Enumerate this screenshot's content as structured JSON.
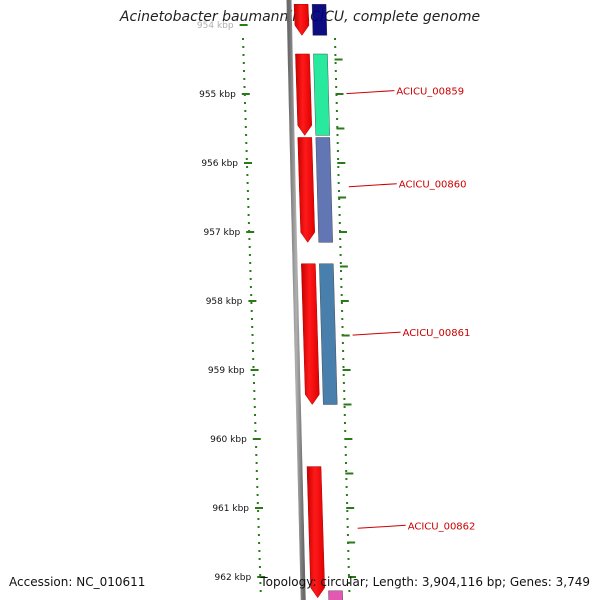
{
  "title": "Acinetobacter baumannii ACICU, complete genome",
  "footer": {
    "accession": "Accession: NC_010611",
    "summary": "Topology: circular; Length: 3,904,116 bp; Genes: 3,749"
  },
  "ticks": [
    {
      "kbp": 954,
      "label": "954 kbp"
    },
    {
      "kbp": 955,
      "label": "955 kbp"
    },
    {
      "kbp": 956,
      "label": "956 kbp"
    },
    {
      "kbp": 957,
      "label": "957 kbp"
    },
    {
      "kbp": 958,
      "label": "958 kbp"
    },
    {
      "kbp": 959,
      "label": "959 kbp"
    },
    {
      "kbp": 960,
      "label": "960 kbp"
    },
    {
      "kbp": 961,
      "label": "961 kbp"
    },
    {
      "kbp": 962,
      "label": "962 kbp"
    }
  ],
  "genes": [
    {
      "id": "g1",
      "start_kbp": 953.7,
      "end_kbp": 954.15,
      "label": ""
    },
    {
      "id": "g2",
      "start_kbp": 954.42,
      "end_kbp": 955.6,
      "label": ""
    },
    {
      "id": "g3",
      "start_kbp": 955.63,
      "end_kbp": 957.15,
      "label": ""
    },
    {
      "id": "g4",
      "start_kbp": 957.46,
      "end_kbp": 959.5,
      "label": ""
    },
    {
      "id": "g5",
      "start_kbp": 960.4,
      "end_kbp": 962.3,
      "label": ""
    }
  ],
  "orfs": [
    {
      "id": "o1",
      "start_kbp": 953.7,
      "end_kbp": 954.15,
      "color": "#00007a",
      "label": ""
    },
    {
      "id": "o2",
      "start_kbp": 954.42,
      "end_kbp": 955.6,
      "color": "#1ee89a",
      "label": "ACICU_00859",
      "label_kbp": 954.95
    },
    {
      "id": "o3",
      "start_kbp": 955.63,
      "end_kbp": 957.15,
      "color": "#5a6fb0",
      "label": "ACICU_00860",
      "label_kbp": 956.3
    },
    {
      "id": "o4",
      "start_kbp": 957.46,
      "end_kbp": 959.5,
      "color": "#3f78a8",
      "label": "ACICU_00861",
      "label_kbp": 958.45
    },
    {
      "id": "o5",
      "start_kbp": 962.2,
      "end_kbp": 962.6,
      "color": "#e050b0",
      "label": ""
    }
  ],
  "unlabeled_orf_label": {
    "label": "ACICU_00862",
    "label_kbp": 961.25
  },
  "colors": {
    "gene": "#ff0000",
    "backbone": "#8a8a8a",
    "tick": "#2a7a1a",
    "label": "#cc0000"
  }
}
